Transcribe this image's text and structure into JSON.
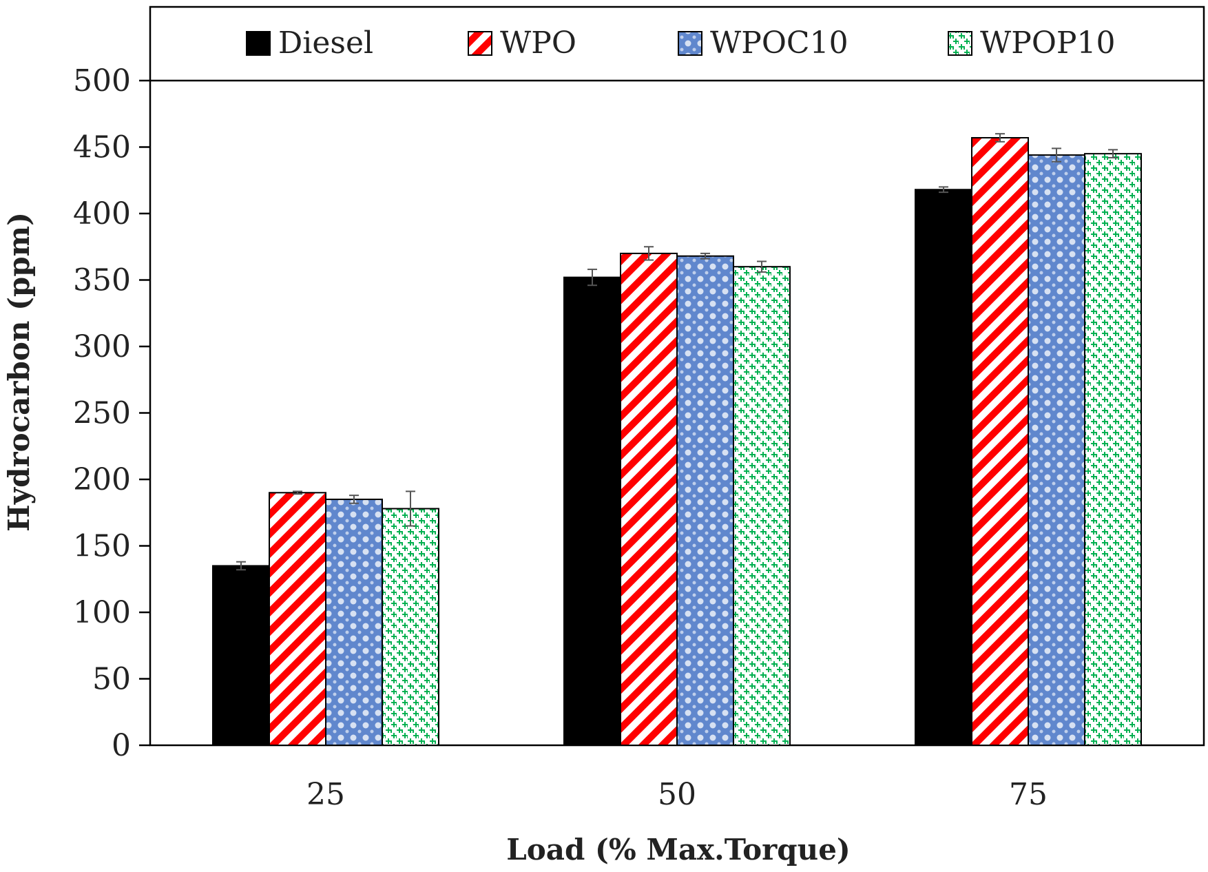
{
  "chart_data": {
    "type": "bar",
    "title": "",
    "xlabel": "Load (% Max.Torque)",
    "ylabel": "Hydrocarbon (ppm)",
    "categories": [
      "25",
      "50",
      "75"
    ],
    "ylim": [
      0,
      500
    ],
    "yticks": [
      "0",
      "50",
      "100",
      "150",
      "200",
      "250",
      "300",
      "350",
      "400",
      "450",
      "500"
    ],
    "legend_position": "top",
    "grid": false,
    "series": [
      {
        "name": "Diesel",
        "values": [
          135,
          352,
          418
        ],
        "errors": [
          3,
          6,
          2
        ],
        "color": "#000000",
        "pattern": "solid"
      },
      {
        "name": "WPO",
        "values": [
          190,
          370,
          457
        ],
        "errors": [
          1,
          5,
          3
        ],
        "color": "#ff0000",
        "pattern": "diagonal-stripes"
      },
      {
        "name": "WPOC10",
        "values": [
          185,
          368,
          444
        ],
        "errors": [
          3,
          2,
          5
        ],
        "color": "#4472c4",
        "pattern": "dots"
      },
      {
        "name": "WPOP10",
        "values": [
          178,
          360,
          445
        ],
        "errors": [
          13,
          4,
          3
        ],
        "color": "#00b050",
        "pattern": "weave"
      }
    ]
  }
}
